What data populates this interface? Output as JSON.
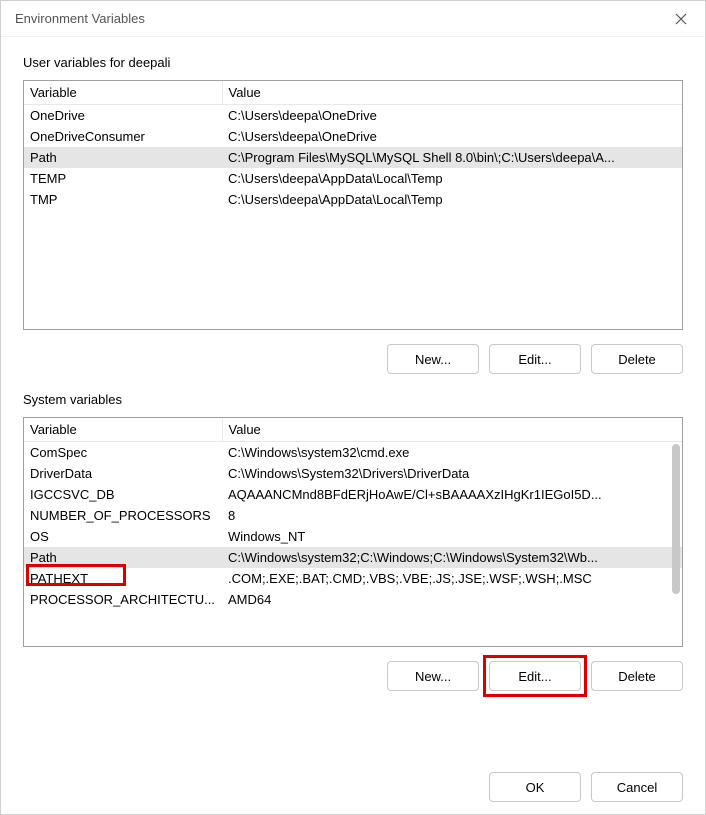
{
  "window": {
    "title": "Environment Variables"
  },
  "userSection": {
    "label": "User variables for deepali",
    "columns": {
      "variable": "Variable",
      "value": "Value"
    },
    "rows": [
      {
        "variable": "OneDrive",
        "value": "C:\\Users\\deepa\\OneDrive",
        "selected": false
      },
      {
        "variable": "OneDriveConsumer",
        "value": "C:\\Users\\deepa\\OneDrive",
        "selected": false
      },
      {
        "variable": "Path",
        "value": "C:\\Program Files\\MySQL\\MySQL Shell 8.0\\bin\\;C:\\Users\\deepa\\A...",
        "selected": true
      },
      {
        "variable": "TEMP",
        "value": "C:\\Users\\deepa\\AppData\\Local\\Temp",
        "selected": false
      },
      {
        "variable": "TMP",
        "value": "C:\\Users\\deepa\\AppData\\Local\\Temp",
        "selected": false
      }
    ],
    "buttons": {
      "new": "New...",
      "edit": "Edit...",
      "delete": "Delete"
    }
  },
  "systemSection": {
    "label": "System variables",
    "columns": {
      "variable": "Variable",
      "value": "Value"
    },
    "rows": [
      {
        "variable": "ComSpec",
        "value": "C:\\Windows\\system32\\cmd.exe",
        "selected": false
      },
      {
        "variable": "DriverData",
        "value": "C:\\Windows\\System32\\Drivers\\DriverData",
        "selected": false
      },
      {
        "variable": "IGCCSVC_DB",
        "value": "AQAAANCMnd8BFdERjHoAwE/Cl+sBAAAAXzIHgKr1IEGoI5D...",
        "selected": false
      },
      {
        "variable": "NUMBER_OF_PROCESSORS",
        "value": "8",
        "selected": false
      },
      {
        "variable": "OS",
        "value": "Windows_NT",
        "selected": false
      },
      {
        "variable": "Path",
        "value": "C:\\Windows\\system32;C:\\Windows;C:\\Windows\\System32\\Wb...",
        "selected": true,
        "highlightRed": true
      },
      {
        "variable": "PATHEXT",
        "value": ".COM;.EXE;.BAT;.CMD;.VBS;.VBE;.JS;.JSE;.WSF;.WSH;.MSC",
        "selected": false
      },
      {
        "variable": "PROCESSOR_ARCHITECTU...",
        "value": "AMD64",
        "selected": false
      }
    ],
    "buttons": {
      "new": "New...",
      "edit": "Edit...",
      "delete": "Delete"
    }
  },
  "footerButtons": {
    "ok": "OK",
    "cancel": "Cancel"
  },
  "highlightColor": "#d80000"
}
